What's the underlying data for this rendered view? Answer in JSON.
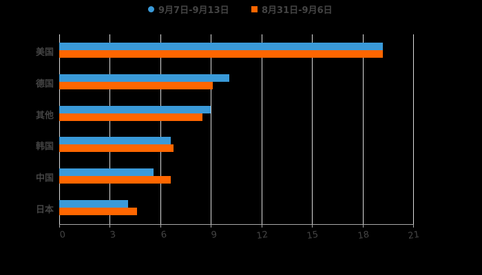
{
  "chart_data": {
    "type": "bar",
    "orientation": "horizontal",
    "title": "",
    "xlabel": "",
    "ylabel": "",
    "categories": [
      "美国",
      "德国",
      "其他",
      "韩国",
      "中国",
      "日本"
    ],
    "series": [
      {
        "name": "9月7日-9月13日",
        "color": "#3a9ad9",
        "marker": "circle",
        "values": [
          19.2,
          10.1,
          9.0,
          6.6,
          5.6,
          4.1
        ]
      },
      {
        "name": "8月31日-9月6日",
        "color": "#ff6600",
        "marker": "square",
        "values": [
          19.2,
          9.1,
          8.5,
          6.8,
          6.6,
          4.6
        ]
      }
    ],
    "xlim": [
      0,
      21
    ],
    "xticks": [
      0,
      3,
      6,
      9,
      12,
      15,
      18,
      21
    ],
    "grid": true,
    "legend_position": "top"
  },
  "legend": {
    "items": [
      {
        "label": "9月7日-9月13日"
      },
      {
        "label": "8月31日-9月6日"
      }
    ]
  },
  "axis": {
    "ticks": [
      "0",
      "3",
      "6",
      "9",
      "12",
      "15",
      "18",
      "21"
    ]
  },
  "categories": {
    "labels": [
      "美国",
      "德国",
      "其他",
      "韩国",
      "中国",
      "日本"
    ]
  }
}
